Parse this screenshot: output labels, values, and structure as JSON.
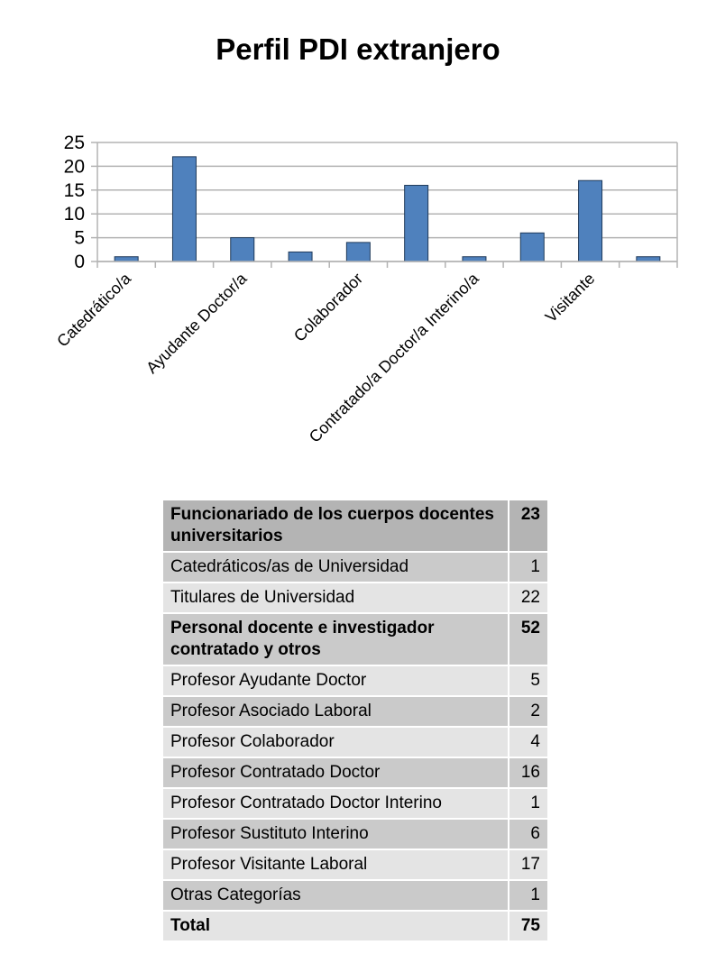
{
  "chart_data": {
    "type": "bar",
    "title": "Perfil PDI extranjero",
    "categories": [
      "Catedrático/a",
      "",
      "Ayudante Doctor/a",
      "",
      "Colaborador",
      "",
      "Contratado/a Doctor/a Interino/a",
      "",
      "Visitante",
      ""
    ],
    "values": [
      1,
      22,
      5,
      2,
      4,
      16,
      1,
      6,
      17,
      1
    ],
    "ylim": [
      0,
      25
    ],
    "yticks": [
      0,
      5,
      10,
      15,
      20,
      25
    ],
    "grid": true,
    "bar_color": "#4f81bd",
    "bar_edge": "#1f3a5a"
  },
  "table": {
    "rows": [
      {
        "kind": "group",
        "label": "Funcionariado de los cuerpos docentes universitarios",
        "value": "23"
      },
      {
        "kind": "row-a",
        "label": "Catedráticos/as de Universidad",
        "value": "1"
      },
      {
        "kind": "row-b",
        "label": "Titulares de Universidad",
        "value": "22"
      },
      {
        "kind": "group-light",
        "label": "Personal docente e investigador contratado y otros",
        "value": "52"
      },
      {
        "kind": "row-b",
        "label": "Profesor Ayudante Doctor",
        "value": "5"
      },
      {
        "kind": "row-a",
        "label": "Profesor Asociado Laboral",
        "value": "2"
      },
      {
        "kind": "row-b",
        "label": "Profesor Colaborador",
        "value": "4"
      },
      {
        "kind": "row-a",
        "label": "Profesor Contratado Doctor",
        "value": "16"
      },
      {
        "kind": "row-b",
        "label": "Profesor Contratado Doctor Interino",
        "value": "1"
      },
      {
        "kind": "row-a",
        "label": "Profesor Sustituto Interino",
        "value": "6"
      },
      {
        "kind": "row-b",
        "label": "Profesor Visitante Laboral",
        "value": "17"
      },
      {
        "kind": "row-a",
        "label": "Otras Categorías",
        "value": "1"
      },
      {
        "kind": "total",
        "label": "Total",
        "value": "75"
      }
    ]
  }
}
